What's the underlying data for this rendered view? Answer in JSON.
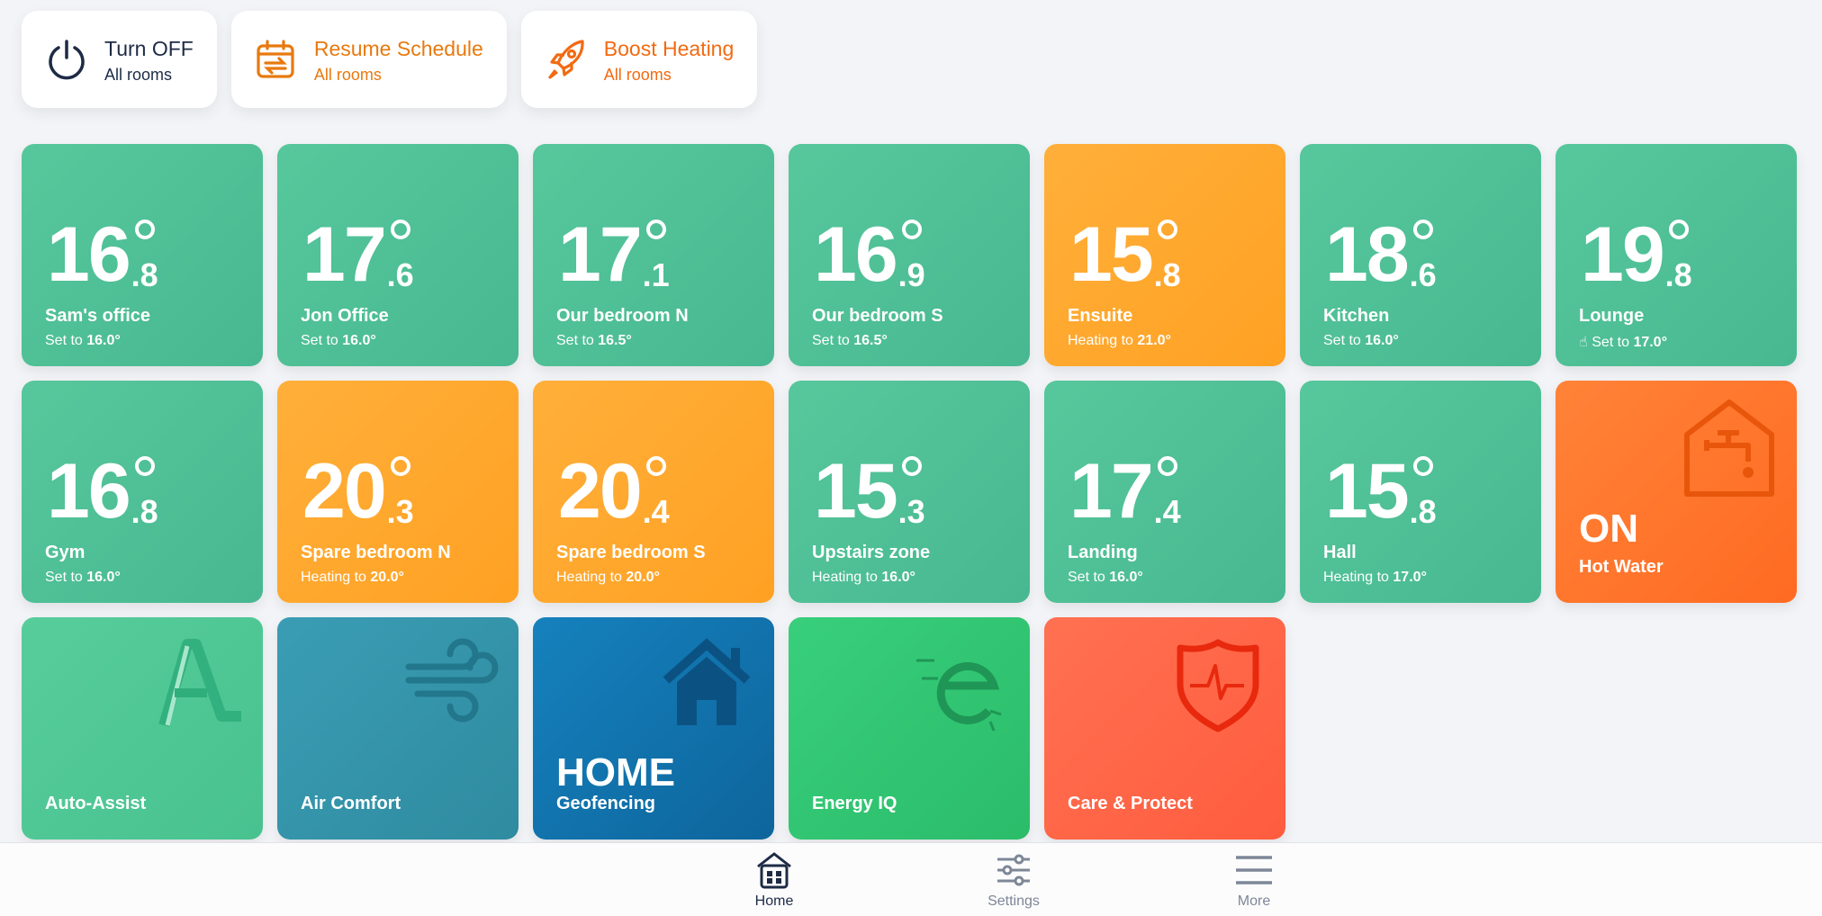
{
  "actions": [
    {
      "title": "Turn OFF",
      "sub": "All rooms",
      "icon": "power-icon"
    },
    {
      "title": "Resume Schedule",
      "sub": "All rooms",
      "icon": "calendar-icon"
    },
    {
      "title": "Boost Heating",
      "sub": "All rooms",
      "icon": "rocket-icon"
    }
  ],
  "rooms": [
    {
      "int": "16",
      "dec": ".8",
      "name": "Sam's office",
      "prefix": "Set to ",
      "target": "16.0°",
      "state": "idle"
    },
    {
      "int": "17",
      "dec": ".6",
      "name": "Jon Office",
      "prefix": "Set to ",
      "target": "16.0°",
      "state": "idle"
    },
    {
      "int": "17",
      "dec": ".1",
      "name": "Our bedroom N",
      "prefix": "Set to ",
      "target": "16.5°",
      "state": "idle"
    },
    {
      "int": "16",
      "dec": ".9",
      "name": "Our bedroom S",
      "prefix": "Set to ",
      "target": "16.5°",
      "state": "idle"
    },
    {
      "int": "15",
      "dec": ".8",
      "name": "Ensuite",
      "prefix": "Heating to ",
      "target": "21.0°",
      "state": "heating"
    },
    {
      "int": "18",
      "dec": ".6",
      "name": "Kitchen",
      "prefix": "Set to ",
      "target": "16.0°",
      "state": "idle"
    },
    {
      "int": "19",
      "dec": ".8",
      "name": "Lounge",
      "prefix": "Set to ",
      "target": "17.0°",
      "state": "manual"
    },
    {
      "int": "16",
      "dec": ".8",
      "name": "Gym",
      "prefix": "Set to ",
      "target": "16.0°",
      "state": "idle"
    },
    {
      "int": "20",
      "dec": ".3",
      "name": "Spare bedroom N",
      "prefix": "Heating to ",
      "target": "20.0°",
      "state": "heating"
    },
    {
      "int": "20",
      "dec": ".4",
      "name": "Spare bedroom S",
      "prefix": "Heating to ",
      "target": "20.0°",
      "state": "heating"
    },
    {
      "int": "15",
      "dec": ".3",
      "name": "Upstairs zone",
      "prefix": "Heating to ",
      "target": "16.0°",
      "state": "idle"
    },
    {
      "int": "17",
      "dec": ".4",
      "name": "Landing",
      "prefix": "Set to ",
      "target": "16.0°",
      "state": "idle"
    },
    {
      "int": "15",
      "dec": ".8",
      "name": "Hall",
      "prefix": "Heating to ",
      "target": "17.0°",
      "state": "idle"
    }
  ],
  "hot_water": {
    "status": "ON",
    "label": "Hot Water"
  },
  "features": [
    {
      "label": "Auto-Assist",
      "icon": "auto-assist-icon"
    },
    {
      "label": "Air Comfort",
      "icon": "wind-icon"
    },
    {
      "big": "HOME",
      "label": "Geofencing",
      "icon": "house-icon"
    },
    {
      "label": "Energy IQ",
      "icon": "energy-iq-icon"
    },
    {
      "label": "Care & Protect",
      "icon": "shield-pulse-icon"
    }
  ],
  "nav": [
    {
      "label": "Home",
      "active": true
    },
    {
      "label": "Settings",
      "active": false
    },
    {
      "label": "More",
      "active": false
    }
  ],
  "colors": {
    "green": "#4fbf95",
    "amber": "#ffa62b",
    "hot": "#ff7430",
    "dark": "#1d2b45",
    "accent": "#f26a12"
  }
}
